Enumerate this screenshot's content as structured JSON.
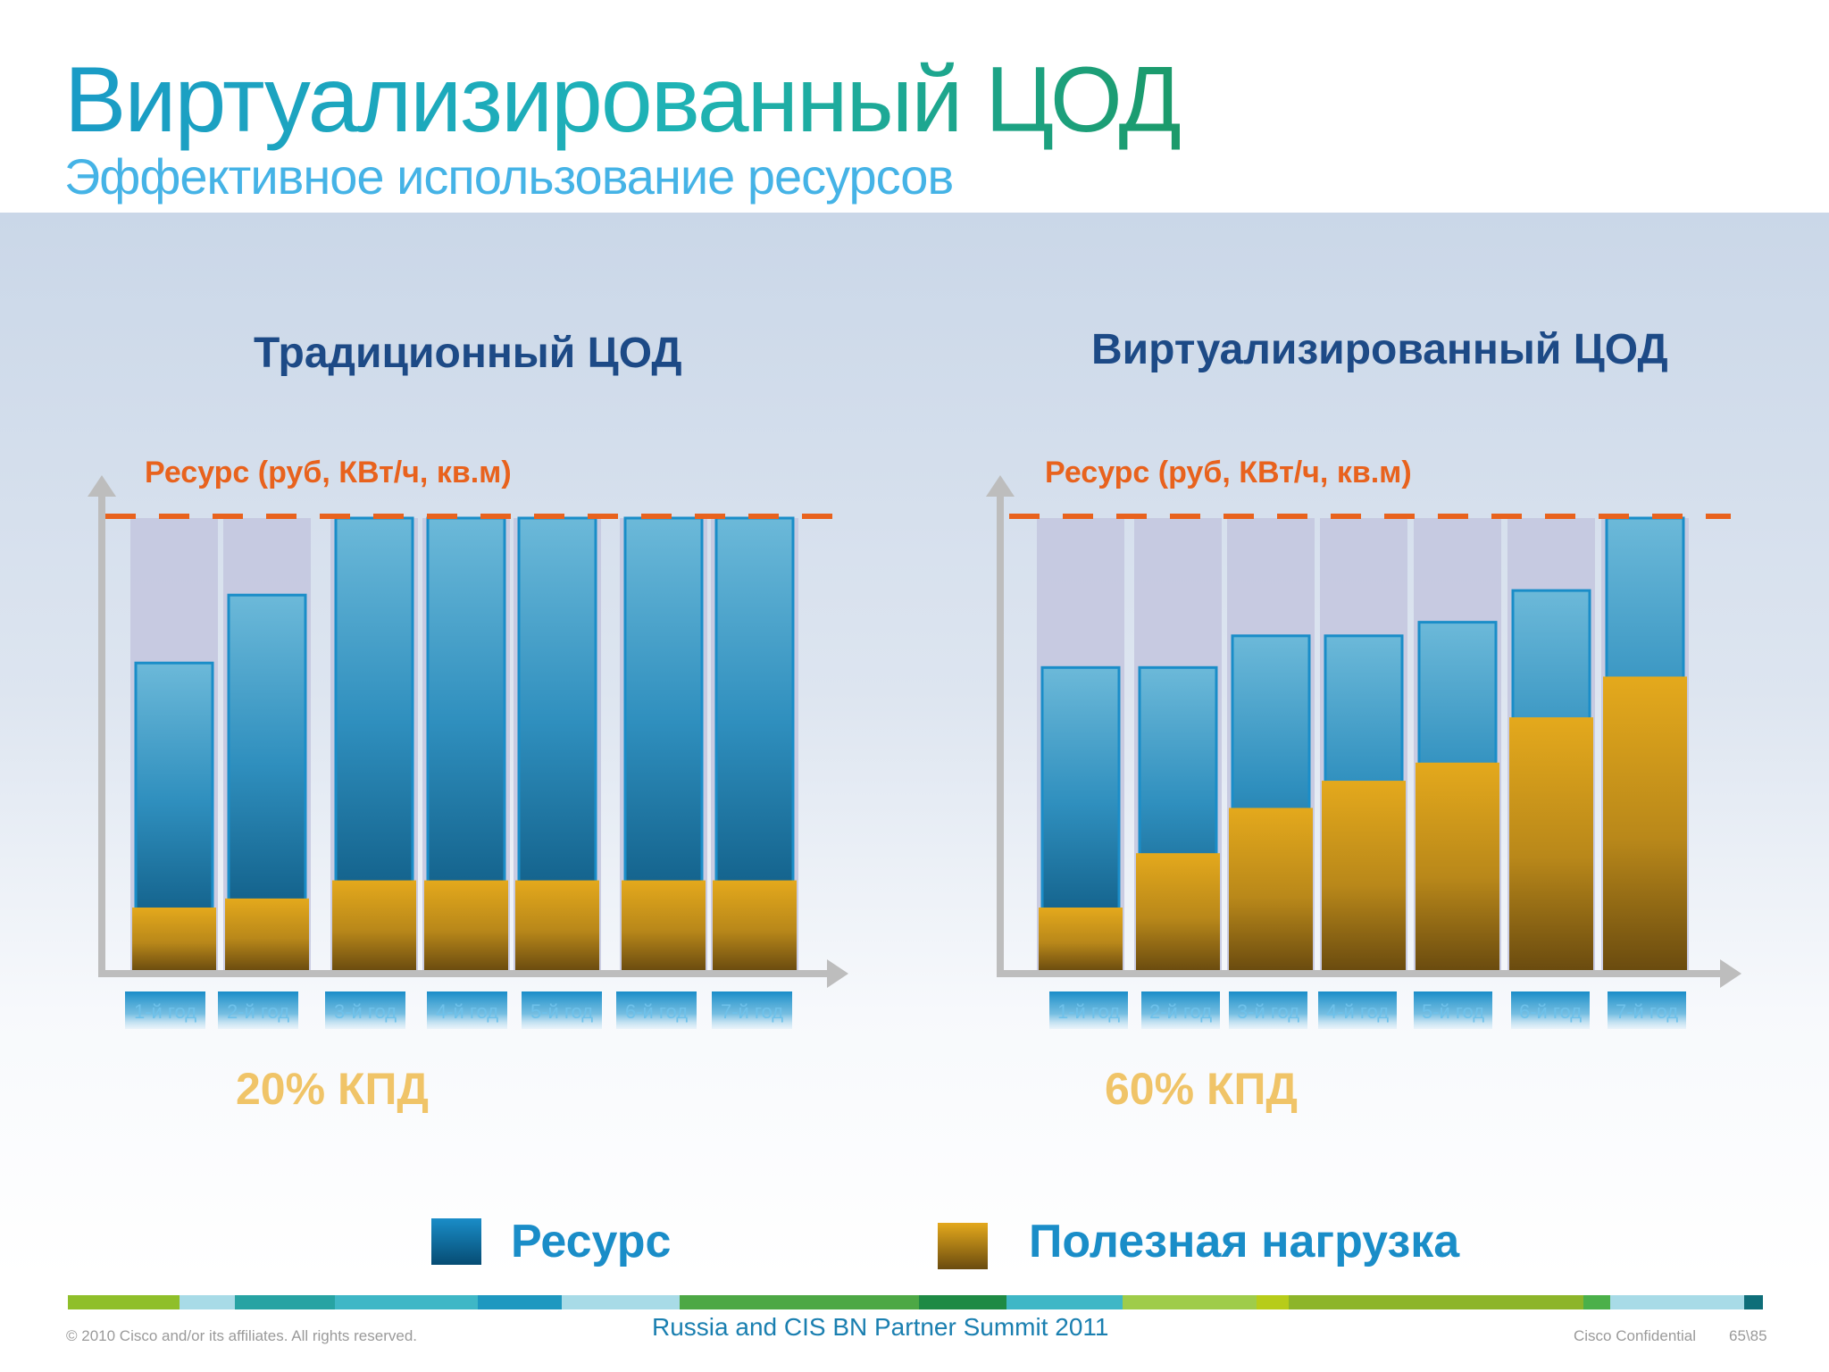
{
  "slide": {
    "title": "Виртуализированный ЦОД",
    "subtitle": "Эффективное использование ресурсов"
  },
  "legend": {
    "resource_label": "Ресурс",
    "payload_label": "Полезная нагрузка"
  },
  "footer": {
    "copyright": "© 2010 Cisco and/or its affiliates. All rights reserved.",
    "event": "Russia and CIS BN Partner Summit 2011",
    "confidential": "Cisco Confidential",
    "page": "65\\85"
  },
  "colors": {
    "resource_top": "#6cb9d9",
    "resource_bottom": "#064c73",
    "payload_top": "#e4a91c",
    "payload_bottom": "#6a4b0f",
    "capacity_bg": "#c3c6de",
    "limit_line": "#e8621d",
    "axis": "#bdbdbd",
    "efficiency_text": "#f0c468"
  },
  "chart_data": [
    {
      "type": "bar",
      "title": "Традиционный ЦОД",
      "ylabel": "Ресурс (руб, КВт/ч, кв.м)",
      "annotation": "20% КПД",
      "categories": [
        "1-й год",
        "2-й год",
        "3-й год",
        "4-й год",
        "5-й год",
        "6-й год",
        "7-й год"
      ],
      "ylim": [
        0,
        100
      ],
      "limit": 100,
      "series": [
        {
          "name": "Полезная нагрузка",
          "values": [
            14,
            16,
            20,
            20,
            20,
            20,
            20
          ]
        },
        {
          "name": "Ресурс",
          "values": [
            68,
            83,
            100,
            100,
            100,
            100,
            100
          ]
        }
      ]
    },
    {
      "type": "bar",
      "title": "Виртуализированный ЦОД",
      "ylabel": "Ресурс (руб, КВт/ч, кв.м)",
      "annotation": "60% КПД",
      "categories": [
        "1-й год",
        "2-й год",
        "3-й год",
        "4-й год",
        "5-й год",
        "6-й год",
        "7-й год"
      ],
      "ylim": [
        0,
        100
      ],
      "limit": 100,
      "series": [
        {
          "name": "Полезная нагрузка",
          "values": [
            14,
            26,
            36,
            42,
            46,
            56,
            65
          ]
        },
        {
          "name": "Ресурс",
          "values": [
            67,
            67,
            74,
            74,
            77,
            84,
            100
          ]
        }
      ]
    }
  ]
}
